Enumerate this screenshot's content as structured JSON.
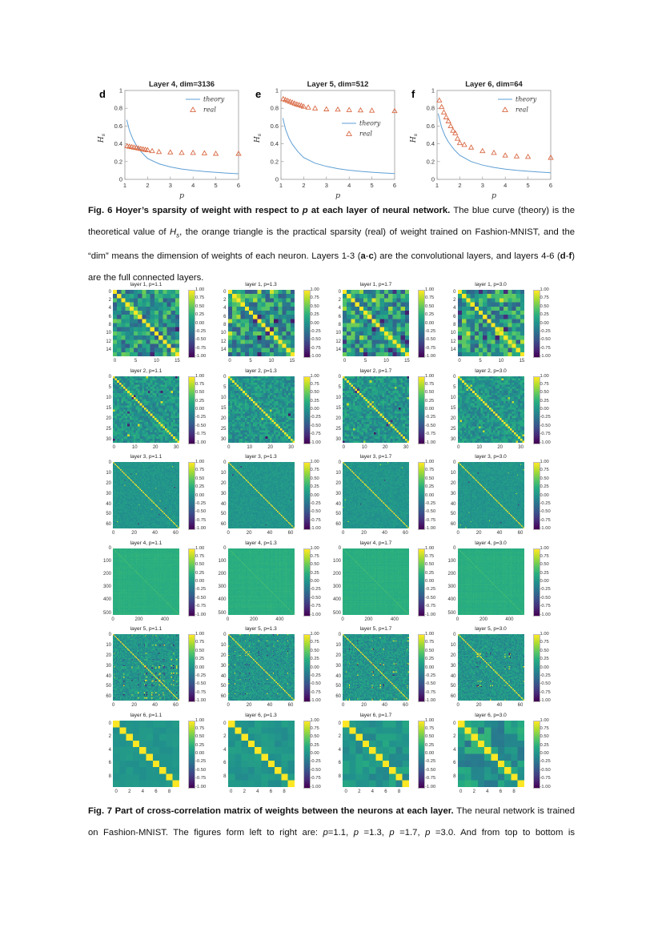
{
  "captions": {
    "fig6": [
      {
        "t": "Fig. 6 Hoyer’s sparsity of weight with respect to ",
        "b": 1
      },
      {
        "t": "p",
        "b": 1,
        "i": 1
      },
      {
        "t": " at each layer of neural network. ",
        "b": 1
      },
      {
        "t": "The blue curve (theory) is the theoretical value of "
      },
      {
        "t": "H",
        "i": 1
      },
      {
        "t": "s",
        "i": 1,
        "sub": 1
      },
      {
        "t": ", the orange triangle is the practical sparsity (real) of weight trained on Fashion-MNIST, and the “dim” means the dimension of weights of each neuron. Layers 1-3 ("
      },
      {
        "t": "a",
        "b": 1
      },
      {
        "t": "-"
      },
      {
        "t": "c",
        "b": 1
      },
      {
        "t": ") are the convolutional layers, and layers 4-6 ("
      },
      {
        "t": "d",
        "b": 1
      },
      {
        "t": "-"
      },
      {
        "t": "f",
        "b": 1
      },
      {
        "t": ") are the full connected layers."
      }
    ],
    "fig7": [
      {
        "t": "Fig. 7 Part of cross-correlation matrix of weights between the neurons at each layer. ",
        "b": 1
      },
      {
        "t": "The neural network is trained on Fashion-MNIST. The figures form left to right are: "
      },
      {
        "t": "p",
        "i": 1
      },
      {
        "t": "=1.1, "
      },
      {
        "t": "p",
        "i": 1
      },
      {
        "t": " =1.3, "
      },
      {
        "t": "p",
        "i": 1
      },
      {
        "t": " =1.7, "
      },
      {
        "t": "p",
        "i": 1
      },
      {
        "t": " =3.0. And from top to bottom is"
      }
    ]
  },
  "chart_data": [
    {
      "type": "line",
      "panel_letter": "d",
      "title": "Layer 4, dim=3136",
      "xlabel": "p",
      "ylabel": "Hs",
      "xlim": [
        1,
        6
      ],
      "ylim": [
        0,
        1
      ],
      "xticks": [
        "1",
        "2",
        "3",
        "4",
        "5",
        "6"
      ],
      "yticks": [
        "0",
        "0.2",
        "0.4",
        "0.6",
        "0.8",
        "1"
      ],
      "grid": false,
      "legend_position": "top-right",
      "legend_items": [
        {
          "label": "theory",
          "marker": "line"
        },
        {
          "label": "real",
          "marker": "triangle"
        }
      ],
      "series": [
        {
          "name": "theory",
          "style": "line",
          "color": "#5e9fd4",
          "points": [
            [
              1.08,
              0.67
            ],
            [
              1.2,
              0.55
            ],
            [
              1.35,
              0.455
            ],
            [
              1.5,
              0.385
            ],
            [
              1.75,
              0.3
            ],
            [
              2.0,
              0.235
            ],
            [
              2.5,
              0.175
            ],
            [
              3.0,
              0.14
            ],
            [
              3.5,
              0.116
            ],
            [
              4.0,
              0.1
            ],
            [
              4.5,
              0.088
            ],
            [
              5.0,
              0.078
            ],
            [
              5.5,
              0.07
            ],
            [
              6.0,
              0.063
            ]
          ]
        },
        {
          "name": "real",
          "style": "triangle",
          "color": "#d96a45",
          "points": [
            [
              1.1,
              0.375
            ],
            [
              1.2,
              0.37
            ],
            [
              1.3,
              0.365
            ],
            [
              1.4,
              0.36
            ],
            [
              1.5,
              0.355
            ],
            [
              1.6,
              0.35
            ],
            [
              1.7,
              0.345
            ],
            [
              1.8,
              0.34
            ],
            [
              1.9,
              0.335
            ],
            [
              2.0,
              0.33
            ],
            [
              2.2,
              0.32
            ],
            [
              2.5,
              0.31
            ],
            [
              3.0,
              0.305
            ],
            [
              3.5,
              0.3
            ],
            [
              4.0,
              0.3
            ],
            [
              4.5,
              0.295
            ],
            [
              5.0,
              0.29
            ],
            [
              6.0,
              0.29
            ]
          ]
        }
      ]
    },
    {
      "type": "line",
      "panel_letter": "e",
      "title": "Layer 5, dim=512",
      "xlabel": "p",
      "ylabel": "Hs",
      "xlim": [
        1,
        6
      ],
      "ylim": [
        0,
        1
      ],
      "xticks": [
        "1",
        "2",
        "3",
        "4",
        "5",
        "6"
      ],
      "yticks": [
        "0",
        "0.2",
        "0.4",
        "0.6",
        "0.8",
        "1"
      ],
      "grid": false,
      "legend_position": "mid-right",
      "legend_items": [
        {
          "label": "theory",
          "marker": "line"
        },
        {
          "label": "real",
          "marker": "triangle"
        }
      ],
      "series": [
        {
          "name": "theory",
          "style": "line",
          "color": "#5e9fd4",
          "points": [
            [
              1.08,
              0.69
            ],
            [
              1.2,
              0.565
            ],
            [
              1.35,
              0.465
            ],
            [
              1.5,
              0.395
            ],
            [
              1.75,
              0.31
            ],
            [
              2.0,
              0.245
            ],
            [
              2.5,
              0.182
            ],
            [
              3.0,
              0.146
            ],
            [
              3.5,
              0.121
            ],
            [
              4.0,
              0.103
            ],
            [
              4.5,
              0.09
            ],
            [
              5.0,
              0.08
            ],
            [
              5.5,
              0.072
            ],
            [
              6.0,
              0.065
            ]
          ]
        },
        {
          "name": "real",
          "style": "triangle",
          "color": "#d96a45",
          "points": [
            [
              1.1,
              0.905
            ],
            [
              1.2,
              0.895
            ],
            [
              1.3,
              0.885
            ],
            [
              1.4,
              0.875
            ],
            [
              1.5,
              0.865
            ],
            [
              1.6,
              0.855
            ],
            [
              1.7,
              0.845
            ],
            [
              1.8,
              0.838
            ],
            [
              1.9,
              0.83
            ],
            [
              2.0,
              0.82
            ],
            [
              2.2,
              0.81
            ],
            [
              2.5,
              0.8
            ],
            [
              3.0,
              0.79
            ],
            [
              3.5,
              0.787
            ],
            [
              4.0,
              0.782
            ],
            [
              4.5,
              0.778
            ],
            [
              5.0,
              0.775
            ],
            [
              6.0,
              0.77
            ]
          ]
        }
      ]
    },
    {
      "type": "line",
      "panel_letter": "f",
      "title": "Layer 6, dim=64",
      "xlabel": "p",
      "ylabel": "Hs",
      "xlim": [
        1,
        6
      ],
      "ylim": [
        0,
        1
      ],
      "xticks": [
        "1",
        "2",
        "3",
        "4",
        "5",
        "6"
      ],
      "yticks": [
        "0",
        "0.2",
        "0.4",
        "0.6",
        "0.8",
        "1"
      ],
      "grid": false,
      "legend_position": "top-right",
      "legend_items": [
        {
          "label": "theory",
          "marker": "line"
        },
        {
          "label": "real",
          "marker": "triangle"
        }
      ],
      "series": [
        {
          "name": "theory",
          "style": "line",
          "color": "#5e9fd4",
          "points": [
            [
              1.05,
              0.74
            ],
            [
              1.2,
              0.585
            ],
            [
              1.35,
              0.49
            ],
            [
              1.5,
              0.42
            ],
            [
              1.75,
              0.335
            ],
            [
              2.0,
              0.27
            ],
            [
              2.5,
              0.2
            ],
            [
              3.0,
              0.16
            ],
            [
              3.5,
              0.134
            ],
            [
              4.0,
              0.115
            ],
            [
              4.5,
              0.101
            ],
            [
              5.0,
              0.091
            ],
            [
              5.5,
              0.082
            ],
            [
              6.0,
              0.075
            ]
          ]
        },
        {
          "name": "real",
          "style": "triangle",
          "color": "#d96a45",
          "points": [
            [
              1.1,
              0.89
            ],
            [
              1.2,
              0.815
            ],
            [
              1.3,
              0.755
            ],
            [
              1.4,
              0.7
            ],
            [
              1.5,
              0.655
            ],
            [
              1.6,
              0.6
            ],
            [
              1.7,
              0.55
            ],
            [
              1.8,
              0.52
            ],
            [
              1.9,
              0.46
            ],
            [
              2.0,
              0.41
            ],
            [
              2.2,
              0.39
            ],
            [
              2.5,
              0.36
            ],
            [
              3.0,
              0.32
            ],
            [
              3.5,
              0.3
            ],
            [
              4.0,
              0.27
            ],
            [
              4.5,
              0.26
            ],
            [
              5.0,
              0.255
            ],
            [
              6.0,
              0.245
            ]
          ]
        }
      ]
    }
  ],
  "figure7": {
    "type": "heatmap-grid",
    "colormap": "viridis",
    "value_range": [
      -1,
      1
    ],
    "p_labels": [
      "p=1.1",
      "p=1.3",
      "p=1.7",
      "p=3.0"
    ],
    "colorbar_ticks": [
      "1.00",
      "0.75",
      "0.50",
      "0.25",
      "0.00",
      "-0.25",
      "-0.50",
      "-0.75",
      "-1.00"
    ],
    "rows": [
      {
        "layer": "layer 1",
        "dim": 16,
        "titles": [
          "layer 1, p=1.1",
          "layer 1, p=1.3",
          "layer 1, p=1.7",
          "layer 1, p=3.0"
        ],
        "yticks": [
          0,
          2,
          4,
          6,
          8,
          10,
          12,
          14
        ],
        "xticks": [
          0,
          5,
          10,
          15
        ],
        "pattern": {
          "n": 16,
          "base": 0.06,
          "noise": 0.5,
          "outlier_p": 0.05,
          "outlier_mag": 0.9,
          "diag": true
        }
      },
      {
        "layer": "layer 2",
        "dim": 32,
        "titles": [
          "layer 2, p=1.1",
          "layer 2, p=1.3",
          "layer 2, p=1.7",
          "layer 2, p=3.0"
        ],
        "yticks": [
          0,
          5,
          10,
          15,
          20,
          25,
          30
        ],
        "xticks": [
          0,
          10,
          20,
          30
        ],
        "pattern": {
          "n": 32,
          "base": 0.05,
          "noise": 0.24,
          "outlier_p": 0.012,
          "outlier_mag": 0.9,
          "diag": true
        }
      },
      {
        "layer": "layer 3",
        "dim": 64,
        "titles": [
          "layer 3, p=1.1",
          "layer 3, p=1.3",
          "layer 3, p=1.7",
          "layer 3, p=3.0"
        ],
        "yticks": [
          0,
          10,
          20,
          30,
          40,
          50,
          60
        ],
        "xticks": [
          0,
          20,
          40,
          60
        ],
        "pattern": {
          "n": 64,
          "base": 0.05,
          "noise": 0.1,
          "outlier_p": 0.004,
          "outlier_mag": 0.75,
          "diag": true
        }
      },
      {
        "layer": "layer 4",
        "dim": 512,
        "titles": [
          "layer 4, p=1.1",
          "layer 4, p=1.3",
          "layer 4, p=1.7",
          "layer 4, p=3.0"
        ],
        "yticks": [
          0,
          100,
          200,
          300,
          400,
          500
        ],
        "xticks": [
          0,
          200,
          400
        ],
        "pattern": {
          "n": 128,
          "base": 0.26,
          "noise": 0.04,
          "stripes": true,
          "diag": false,
          "weak_diag": 0.45
        }
      },
      {
        "layer": "layer 5",
        "dim": 64,
        "titles": [
          "layer 5, p=1.1",
          "layer 5, p=1.3",
          "layer 5, p=1.7",
          "layer 5, p=3.0"
        ],
        "yticks": [
          0,
          10,
          20,
          30,
          40,
          50,
          60
        ],
        "xticks": [
          0,
          20,
          40,
          60
        ],
        "pattern": {
          "n": 64,
          "base": 0.05,
          "noise": 0.2,
          "structured": true,
          "active_p": 0.22,
          "outlier_mag": 0.9,
          "diag": true
        }
      },
      {
        "layer": "layer 6",
        "dim": 10,
        "titles": [
          "layer 6, p=1.1",
          "layer 6, p=1.3",
          "layer 6, p=1.7",
          "layer 6, p=3.0"
        ],
        "yticks": [
          0,
          2,
          4,
          6,
          8
        ],
        "xticks": [
          0,
          2,
          4,
          6,
          8
        ],
        "pattern": {
          "n": 10,
          "base": 0.05,
          "noise": [
            0.06,
            0.1,
            0.17,
            0.3
          ],
          "diag": true
        }
      }
    ]
  }
}
